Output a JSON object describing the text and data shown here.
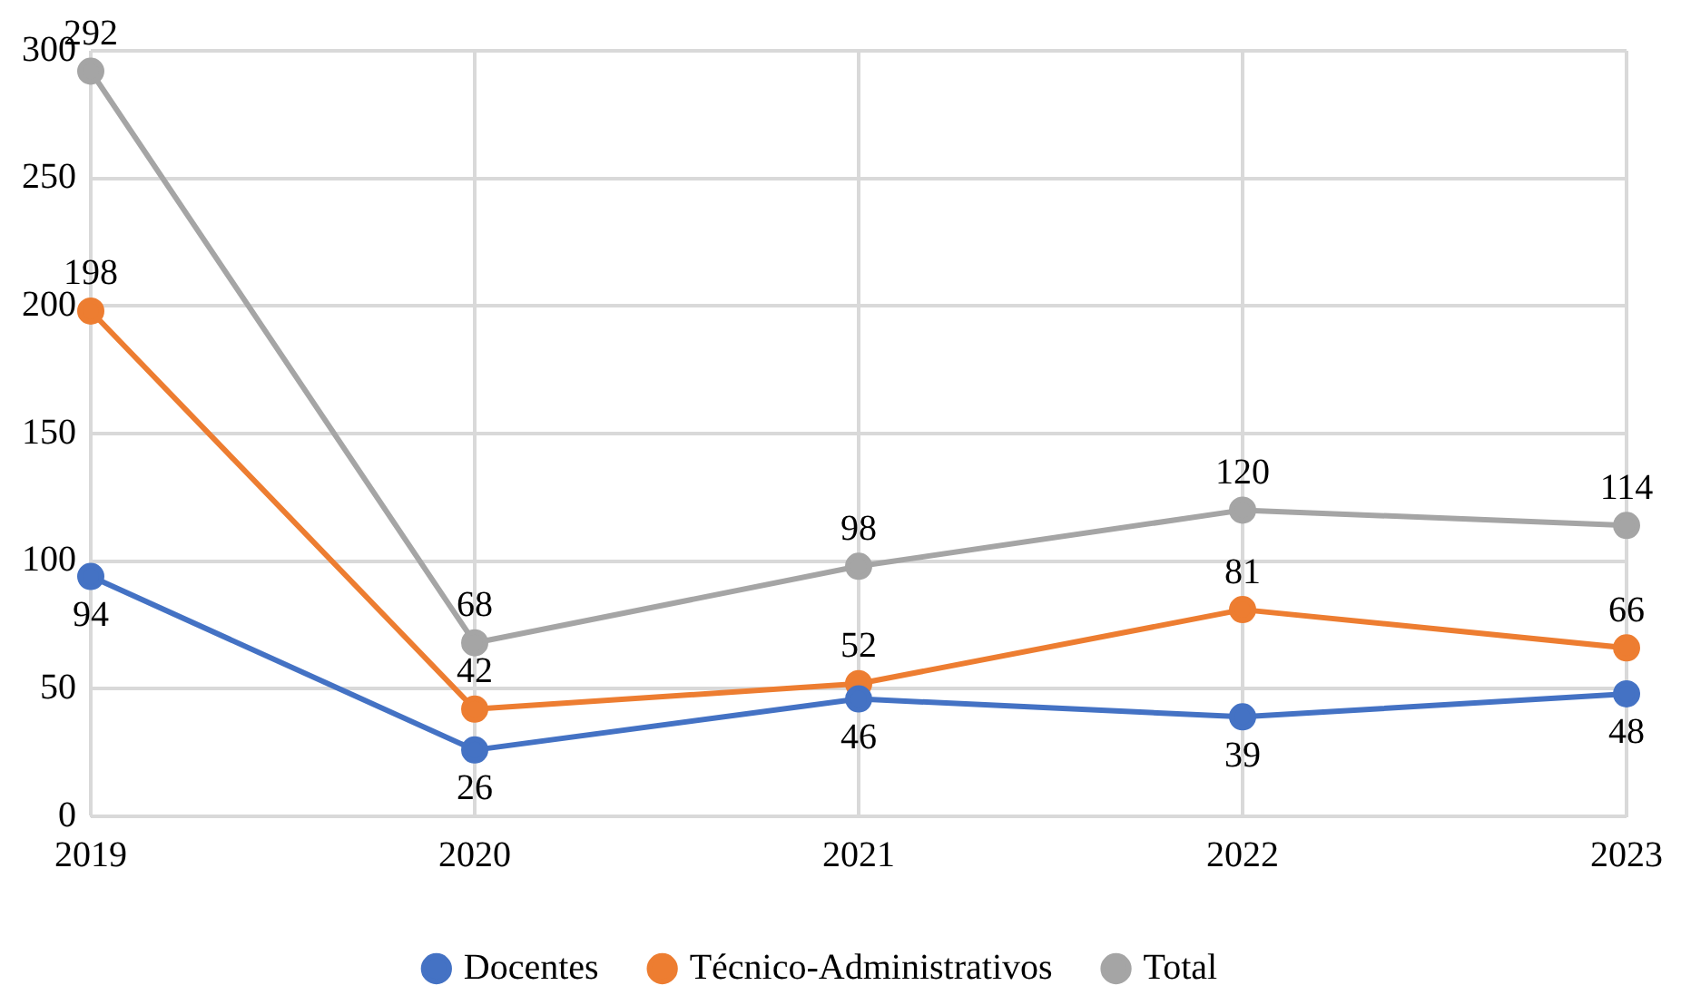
{
  "chart_data": {
    "type": "line",
    "categories": [
      "2019",
      "2020",
      "2021",
      "2022",
      "2023"
    ],
    "series": [
      {
        "name": "Docentes",
        "color": "#4472c4",
        "values": [
          94,
          26,
          46,
          39,
          48
        ]
      },
      {
        "name": "Técnico-Administrativos",
        "color": "#ed7d31",
        "values": [
          198,
          42,
          52,
          81,
          66
        ]
      },
      {
        "name": "Total",
        "color": "#a5a5a5",
        "values": [
          292,
          68,
          98,
          120,
          114
        ]
      }
    ],
    "ylim": [
      0,
      300
    ],
    "yticks": [
      0,
      50,
      100,
      150,
      200,
      250,
      300
    ],
    "grid": true,
    "legend": "bottom",
    "marker": "circle",
    "line_style": "solid",
    "data_labels": true
  }
}
